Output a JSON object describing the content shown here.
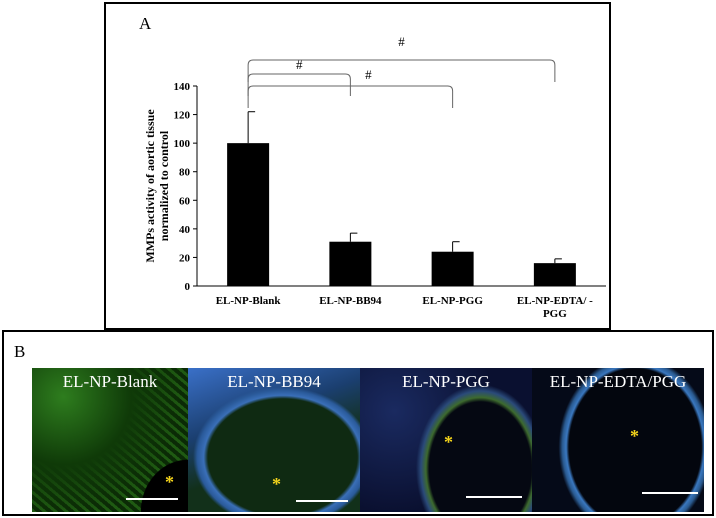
{
  "panel_a": {
    "letter": "A"
  },
  "panel_b": {
    "letter": "B",
    "images": [
      {
        "label": "EL-NP-Blank",
        "star": "*"
      },
      {
        "label": "EL-NP-BB94",
        "star": "*"
      },
      {
        "label": "EL-NP-PGG",
        "star": "*"
      },
      {
        "label": "EL-NP-EDTA/PGG",
        "star": "*"
      }
    ]
  },
  "chart_data": {
    "type": "bar",
    "title": "",
    "xlabel": "",
    "ylabel_lines": [
      "MMPs activity of aortic tissue",
      "normalized to control"
    ],
    "categories": [
      "EL-NP-Blank",
      "EL-NP-BB94",
      "EL-NP-PGG",
      "EL-NP-EDTA/ -PGG"
    ],
    "values": [
      100,
      31,
      24,
      16
    ],
    "error_plus": [
      22,
      6,
      7,
      3
    ],
    "ylim": [
      0,
      140
    ],
    "yticks": [
      0,
      20,
      40,
      60,
      80,
      100,
      120,
      140
    ],
    "bar_color": "#000000",
    "significance": [
      {
        "from": 0,
        "to": 1,
        "label": "#"
      },
      {
        "from": 0,
        "to": 2,
        "label": "#"
      },
      {
        "from": 0,
        "to": 3,
        "label": "#"
      }
    ]
  }
}
